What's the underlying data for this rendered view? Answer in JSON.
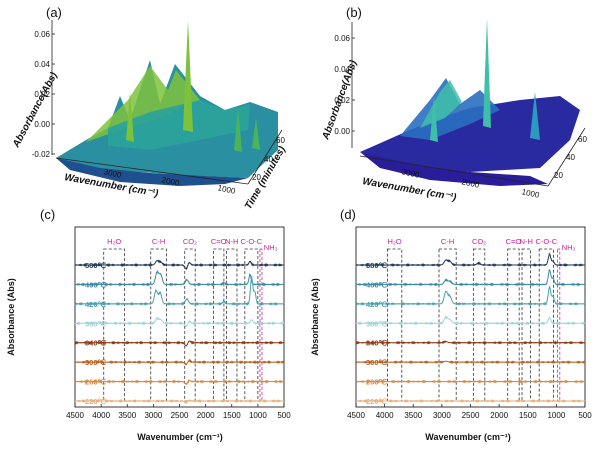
{
  "figure": {
    "panels": {
      "a": {
        "label": "(a)"
      },
      "b": {
        "label": "(b)"
      },
      "c": {
        "label": "(c)"
      },
      "d": {
        "label": "(d)"
      }
    }
  },
  "surface_3d": {
    "z_label": "Absorbance(Abs)",
    "x_label": "Wavenumber (cm⁻¹)",
    "y_label": "Time (minutes)",
    "a": {
      "z_ticks": [
        "0.06",
        "0.04",
        "0.02",
        "0.00",
        "-0.02"
      ],
      "x_ticks": [
        "3000",
        "2000",
        "1000"
      ],
      "y_ticks": [
        "20",
        "40",
        "60"
      ],
      "colors": {
        "low": "#1e4f8e",
        "mid": "#2aa39a",
        "high": "#7ec23c"
      }
    },
    "b": {
      "z_ticks": [
        "0.06",
        "0.04",
        "0.02",
        "0.00"
      ],
      "x_ticks": [
        "3000",
        "2000",
        "1000"
      ],
      "y_ticks": [
        "20",
        "40",
        "60"
      ],
      "colors": {
        "low": "#2a1d9a",
        "mid": "#2a6fc0",
        "high": "#3ec0a8"
      }
    }
  },
  "chart_data": [
    {
      "panel": "c",
      "type": "line",
      "xlabel": "Wavenumber (cm⁻¹)",
      "ylabel": "Absorbance (Abs)",
      "xlim": [
        4500,
        500
      ],
      "x_ticks": [
        "4500",
        "4000",
        "3500",
        "3000",
        "2500",
        "2000",
        "1500",
        "1000",
        "500"
      ],
      "groups": [
        {
          "label": "H₂O",
          "range": [
            3950,
            3550
          ]
        },
        {
          "label": "C-H",
          "range": [
            3050,
            2750
          ]
        },
        {
          "label": "CO₂",
          "range": [
            2400,
            2200
          ]
        },
        {
          "label": "C=O",
          "range": [
            1850,
            1650
          ]
        },
        {
          "label": "N-H",
          "range": [
            1600,
            1400
          ]
        },
        {
          "label": "C-O-C",
          "range": [
            1250,
            1000
          ]
        },
        {
          "label": "NH₃",
          "range": [
            960,
            930
          ]
        }
      ],
      "series": [
        {
          "name": "580℃",
          "color": "#1f3b5a",
          "peaks": [
            [
              2930,
              0.35
            ],
            [
              2860,
              0.25
            ],
            [
              2360,
              -0.5
            ],
            [
              2330,
              0.4
            ],
            [
              1150,
              0.3
            ]
          ]
        },
        {
          "name": "460℃",
          "color": "#3c8aa0",
          "peaks": [
            [
              2930,
              1.0
            ],
            [
              2860,
              0.8
            ],
            [
              2360,
              0.4
            ],
            [
              1650,
              0.15
            ],
            [
              1150,
              0.8
            ]
          ]
        },
        {
          "name": "420℃",
          "color": "#4aa0b0",
          "peaks": [
            [
              2950,
              1.1
            ],
            [
              2870,
              0.9
            ],
            [
              2360,
              0.4
            ],
            [
              1650,
              0.2
            ],
            [
              1120,
              2.2
            ],
            [
              1060,
              1.0
            ]
          ]
        },
        {
          "name": "380℃",
          "color": "#9fd3df",
          "peaks": [
            [
              2930,
              0.4
            ],
            [
              2860,
              0.3
            ],
            [
              2360,
              -0.4
            ],
            [
              2330,
              0.3
            ],
            [
              1120,
              0.3
            ]
          ]
        },
        {
          "name": "340℃",
          "color": "#8a3a14",
          "peaks": [
            [
              2360,
              -0.4
            ],
            [
              2330,
              0.3
            ]
          ]
        },
        {
          "name": "300℃",
          "color": "#b8621e",
          "peaks": [
            [
              2360,
              -0.3
            ],
            [
              2330,
              0.25
            ]
          ]
        },
        {
          "name": "260℃",
          "color": "#d88a45",
          "peaks": [
            [
              2360,
              -0.3
            ],
            [
              2330,
              0.2
            ]
          ]
        },
        {
          "name": "220℃",
          "color": "#eab07a",
          "peaks": [
            [
              2360,
              -0.15
            ],
            [
              2330,
              0.1
            ]
          ]
        }
      ]
    },
    {
      "panel": "d",
      "type": "line",
      "xlabel": "Wavenumber (cm⁻¹)",
      "ylabel": "Absorbance (Abs)",
      "xlim": [
        4500,
        500
      ],
      "x_ticks": [
        "4500",
        "4000",
        "3500",
        "3000",
        "2500",
        "2000",
        "1500",
        "1000",
        "500"
      ],
      "groups": [
        {
          "label": "H₂O",
          "range": [
            3950,
            3700
          ]
        },
        {
          "label": "C-H",
          "range": [
            3050,
            2750
          ]
        },
        {
          "label": "CO₂",
          "range": [
            2450,
            2250
          ]
        },
        {
          "label": "C=O",
          "range": [
            1850,
            1650
          ]
        },
        {
          "label": "N-H",
          "range": [
            1600,
            1450
          ]
        },
        {
          "label": "C-O-C",
          "range": [
            1300,
            1050
          ]
        },
        {
          "label": "NH₃",
          "range": [
            980,
            940
          ]
        }
      ],
      "series": [
        {
          "name": "580℃",
          "color": "#1f3b5a",
          "peaks": [
            [
              2930,
              0.4
            ],
            [
              2860,
              0.3
            ],
            [
              2360,
              0.15
            ],
            [
              1120,
              0.9
            ],
            [
              1060,
              0.3
            ]
          ]
        },
        {
          "name": "460℃",
          "color": "#3c8aa0",
          "peaks": [
            [
              2930,
              0.35
            ],
            [
              2860,
              0.25
            ],
            [
              1120,
              1.2
            ],
            [
              1060,
              0.5
            ]
          ]
        },
        {
          "name": "420℃",
          "color": "#4aa0b0",
          "peaks": [
            [
              2930,
              1.0
            ],
            [
              2860,
              0.6
            ],
            [
              1120,
              1.4
            ],
            [
              1060,
              0.6
            ]
          ]
        },
        {
          "name": "380℃",
          "color": "#9fd3df",
          "peaks": [
            [
              2930,
              0.5
            ],
            [
              2860,
              0.3
            ],
            [
              1120,
              0.5
            ]
          ]
        },
        {
          "name": "340℃",
          "color": "#8a3a14",
          "peaks": [
            [
              2930,
              0.1
            ]
          ]
        },
        {
          "name": "300℃",
          "color": "#b8621e",
          "peaks": [
            [
              2930,
              0.08
            ]
          ]
        },
        {
          "name": "260℃",
          "color": "#d88a45",
          "peaks": []
        },
        {
          "name": "220℃",
          "color": "#eab07a",
          "peaks": []
        }
      ]
    }
  ]
}
